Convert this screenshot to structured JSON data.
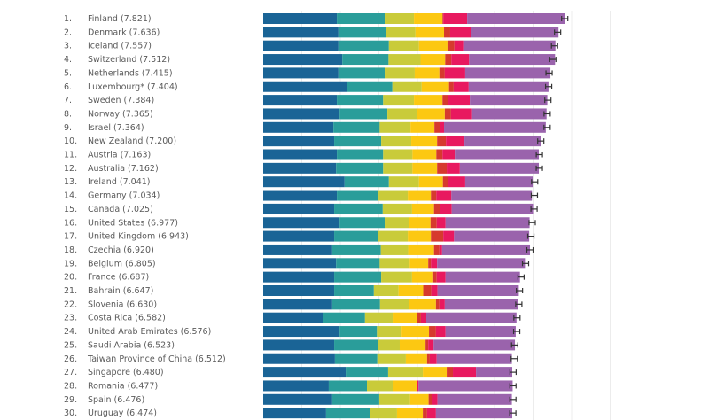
{
  "chart_data": {
    "type": "bar",
    "orientation": "horizontal",
    "stacked": true,
    "title": "",
    "xlabel": "",
    "ylabel": "",
    "xlim": [
      0,
      9
    ],
    "grid": true,
    "legend": "none",
    "colors": {
      "gdp": "#1a6496",
      "social": "#2a9d9a",
      "health": "#c9cb3a",
      "freedom": "#fcc812",
      "generosity": "#d63a2e",
      "corruption": "#e8195f",
      "dystopia": "#9a63ac",
      "errorbar": "#333333",
      "grid": "#ececec",
      "label": "#5a5a5a"
    },
    "segment_names": [
      "gdp",
      "social",
      "health",
      "freedom",
      "generosity",
      "corruption",
      "dystopia"
    ],
    "categories": [
      {
        "rank": "1.",
        "label": "Finland (7.821)",
        "score": 7.821,
        "segments": [
          1.91,
          1.24,
          0.76,
          0.74,
          0.02,
          0.62,
          2.53
        ]
      },
      {
        "rank": "2.",
        "label": "Denmark (7.636)",
        "score": 7.636,
        "segments": [
          1.95,
          1.24,
          0.76,
          0.74,
          0.16,
          0.53,
          2.28
        ]
      },
      {
        "rank": "3.",
        "label": "Iceland (7.557)",
        "score": 7.557,
        "segments": [
          1.95,
          1.31,
          0.78,
          0.74,
          0.18,
          0.23,
          2.39
        ]
      },
      {
        "rank": "4.",
        "label": "Switzerland (7.512)",
        "score": 7.512,
        "segments": [
          2.05,
          1.2,
          0.83,
          0.64,
          0.16,
          0.46,
          2.23
        ]
      },
      {
        "rank": "5.",
        "label": "Netherlands (7.415)",
        "score": 7.415,
        "segments": [
          1.95,
          1.2,
          0.78,
          0.64,
          0.14,
          0.53,
          2.21
        ]
      },
      {
        "rank": "6.",
        "label": "Luxembourg* (7.404)",
        "score": 7.404,
        "segments": [
          2.18,
          1.17,
          0.76,
          0.71,
          0.12,
          0.39,
          2.07
        ]
      },
      {
        "rank": "7.",
        "label": "Sweden (7.384)",
        "score": 7.384,
        "segments": [
          1.91,
          1.2,
          0.8,
          0.74,
          0.14,
          0.57,
          2.01
        ]
      },
      {
        "rank": "8.",
        "label": "Norway (7.365)",
        "score": 7.365,
        "segments": [
          1.98,
          1.24,
          0.78,
          0.71,
          0.16,
          0.55,
          1.93
        ]
      },
      {
        "rank": "9.",
        "label": "Israel (7.364)",
        "score": 7.364,
        "segments": [
          1.82,
          1.2,
          0.8,
          0.62,
          0.14,
          0.11,
          2.64
        ]
      },
      {
        "rank": "10.",
        "label": "New Zealand (7.200)",
        "score": 7.2,
        "segments": [
          1.84,
          1.22,
          0.78,
          0.67,
          0.23,
          0.48,
          1.98
        ]
      },
      {
        "rank": "11.",
        "label": "Austria (7.163)",
        "score": 7.163,
        "segments": [
          1.91,
          1.2,
          0.76,
          0.62,
          0.16,
          0.32,
          2.18
        ]
      },
      {
        "rank": "12.",
        "label": "Australia (7.162)",
        "score": 7.162,
        "segments": [
          1.89,
          1.22,
          0.76,
          0.64,
          0.25,
          0.34,
          2.05
        ]
      },
      {
        "rank": "13.",
        "label": "Ireland (7.041)",
        "score": 7.041,
        "segments": [
          2.11,
          1.15,
          0.78,
          0.62,
          0.14,
          0.44,
          1.75
        ]
      },
      {
        "rank": "14.",
        "label": "Germany (7.034)",
        "score": 7.034,
        "segments": [
          1.91,
          1.08,
          0.76,
          0.6,
          0.14,
          0.39,
          2.09
        ]
      },
      {
        "rank": "15.",
        "label": "Canada (7.025)",
        "score": 7.025,
        "segments": [
          1.84,
          1.26,
          0.76,
          0.57,
          0.16,
          0.3,
          2.11
        ]
      },
      {
        "rank": "16.",
        "label": "United States (6.977)",
        "score": 6.977,
        "segments": [
          1.98,
          1.17,
          0.62,
          0.57,
          0.16,
          0.23,
          2.18
        ]
      },
      {
        "rank": "17.",
        "label": "United Kingdom (6.943)",
        "score": 6.943,
        "segments": [
          1.84,
          1.13,
          0.78,
          0.6,
          0.32,
          0.28,
          1.95
        ]
      },
      {
        "rank": "18.",
        "label": "Czechia (6.920)",
        "score": 6.92,
        "segments": [
          1.79,
          1.26,
          0.71,
          0.67,
          0.14,
          0.07,
          2.28
        ]
      },
      {
        "rank": "19.",
        "label": "Belgium (6.805)",
        "score": 6.805,
        "segments": [
          1.89,
          1.13,
          0.78,
          0.48,
          0.07,
          0.16,
          2.28
        ]
      },
      {
        "rank": "20.",
        "label": "France (6.687)",
        "score": 6.687,
        "segments": [
          1.84,
          1.22,
          0.8,
          0.55,
          0.09,
          0.23,
          1.93
        ]
      },
      {
        "rank": "21.",
        "label": "Bahrain (6.647)",
        "score": 6.647,
        "segments": [
          1.84,
          1.03,
          0.64,
          0.64,
          0.21,
          0.16,
          2.11
        ]
      },
      {
        "rank": "22.",
        "label": "Slovenia (6.630)",
        "score": 6.63,
        "segments": [
          1.79,
          1.24,
          0.76,
          0.69,
          0.09,
          0.14,
          1.91
        ]
      },
      {
        "rank": "23.",
        "label": "Costa Rica (6.582)",
        "score": 6.582,
        "segments": [
          1.56,
          1.08,
          0.74,
          0.62,
          0.09,
          0.14,
          2.34
        ]
      },
      {
        "rank": "24.",
        "label": "United Arab Emirates (6.576)",
        "score": 6.576,
        "segments": [
          1.98,
          0.97,
          0.64,
          0.71,
          0.18,
          0.25,
          1.82
        ]
      },
      {
        "rank": "25.",
        "label": "Saudi Arabia (6.523)",
        "score": 6.523,
        "segments": [
          1.84,
          1.13,
          0.57,
          0.67,
          0.07,
          0.14,
          2.11
        ]
      },
      {
        "rank": "26.",
        "label": "Taiwan Province of China (6.512)",
        "score": 6.512,
        "segments": [
          1.86,
          1.1,
          0.74,
          0.55,
          0.07,
          0.18,
          1.95
        ]
      },
      {
        "rank": "27.",
        "label": "Singapore (6.480)",
        "score": 6.48,
        "segments": [
          2.14,
          1.1,
          0.9,
          0.62,
          0.16,
          0.6,
          0.94
        ]
      },
      {
        "rank": "28.",
        "label": "Romania (6.477)",
        "score": 6.477,
        "segments": [
          1.7,
          0.99,
          0.67,
          0.62,
          0.0,
          0.05,
          2.44
        ]
      },
      {
        "rank": "29.",
        "label": "Spain (6.476)",
        "score": 6.476,
        "segments": [
          1.79,
          1.22,
          0.8,
          0.48,
          0.09,
          0.14,
          1.93
        ]
      },
      {
        "rank": "30.",
        "label": "Uruguay (6.474)",
        "score": 6.474,
        "segments": [
          1.63,
          1.15,
          0.69,
          0.67,
          0.11,
          0.23,
          1.98
        ]
      }
    ]
  }
}
